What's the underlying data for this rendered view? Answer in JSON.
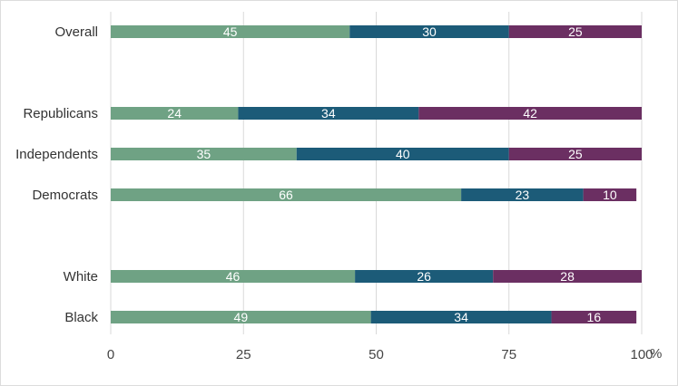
{
  "chart_data": {
    "type": "bar",
    "orientation": "horizontal",
    "stacked": true,
    "categories": [
      "Overall",
      "Republicans",
      "Independents",
      "Democrats",
      "White",
      "Black"
    ],
    "series": [
      {
        "values": [
          45,
          24,
          35,
          66,
          46,
          49
        ],
        "color": "#6fa284"
      },
      {
        "values": [
          30,
          34,
          40,
          23,
          26,
          34
        ],
        "color": "#1c5b78"
      },
      {
        "values": [
          25,
          42,
          25,
          10,
          28,
          16
        ],
        "color": "#6b2f62"
      }
    ],
    "xlim": [
      0,
      100
    ],
    "xticks": [
      "0",
      "25",
      "50",
      "75",
      "100"
    ],
    "x_unit": "%",
    "grid": true,
    "legend": "none"
  }
}
